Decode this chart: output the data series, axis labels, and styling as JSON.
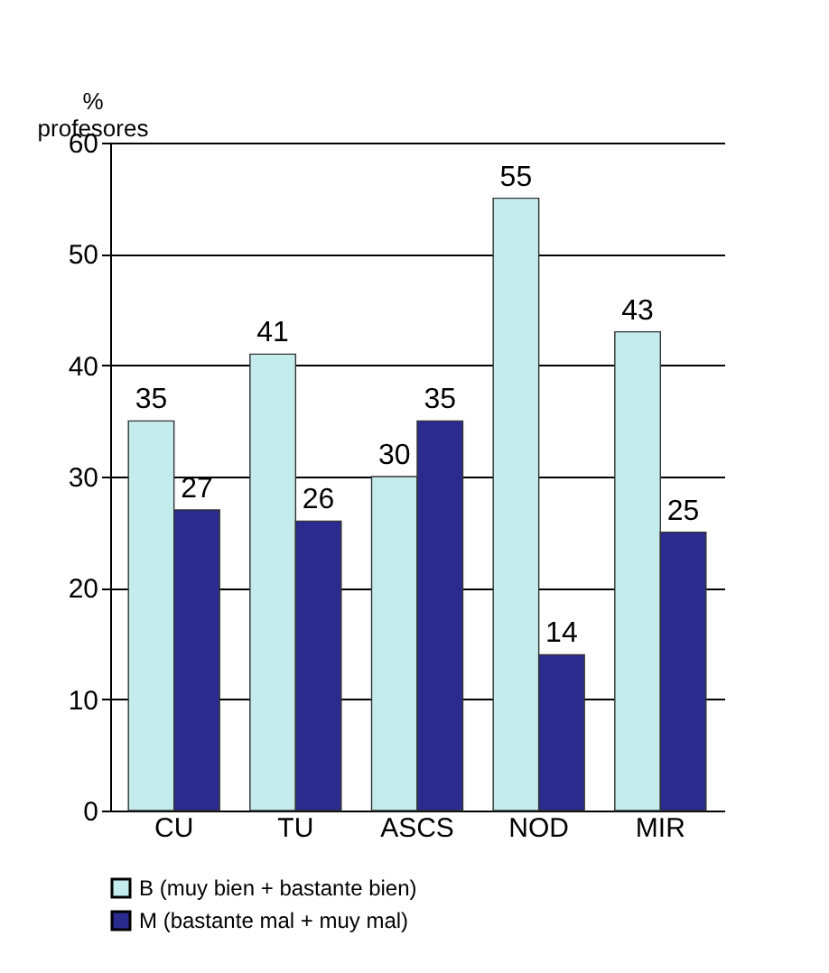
{
  "chart_data": {
    "type": "bar",
    "ylabel": "% profesores",
    "categories": [
      "CU",
      "TU",
      "ASCS",
      "NOD",
      "MIR"
    ],
    "series": [
      {
        "name": "B (muy bien + bastante bien)",
        "color": "#c4ecec",
        "values": [
          35,
          41,
          30,
          55,
          43
        ]
      },
      {
        "name": "M (bastante mal + muy mal)",
        "color": "#2b2b8f",
        "values": [
          27,
          26,
          35,
          14,
          25
        ]
      }
    ],
    "ylim": [
      0,
      60
    ],
    "yticks": [
      0,
      10,
      20,
      30,
      40,
      50,
      60
    ],
    "grid": "y",
    "legend": "bottom",
    "data_labels": true
  }
}
